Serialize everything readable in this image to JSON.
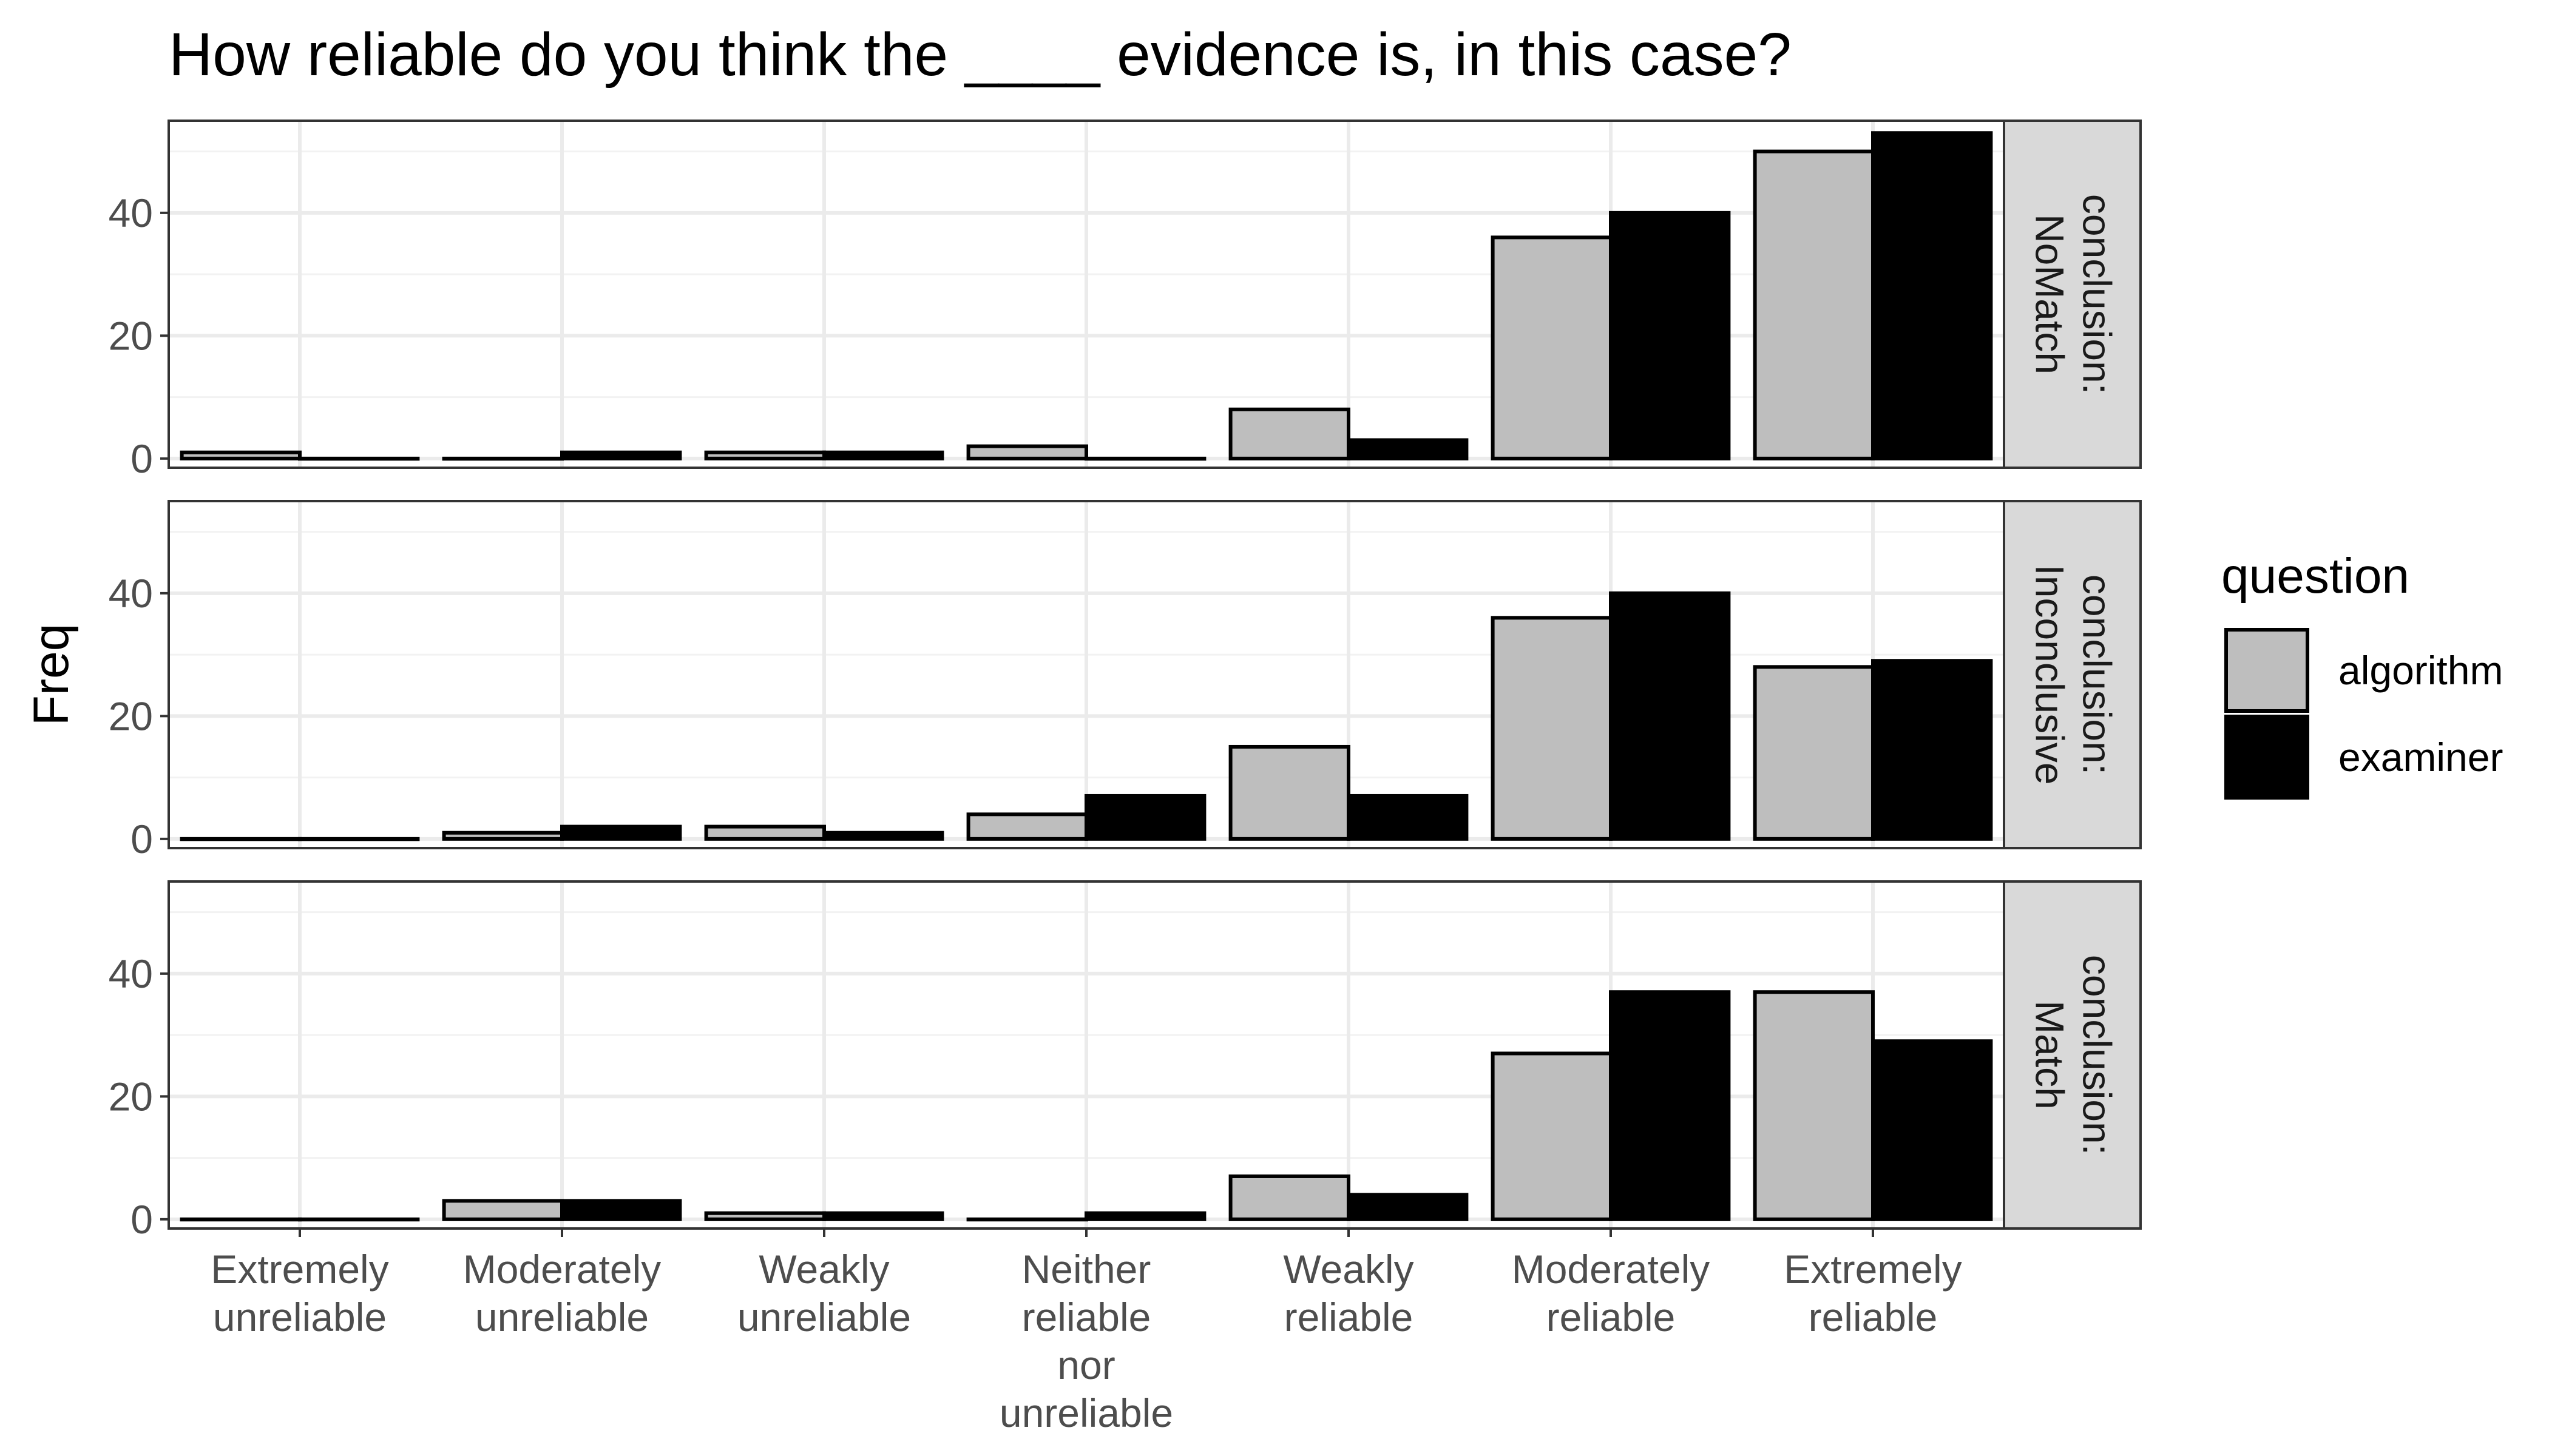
{
  "chart_data": {
    "type": "bar",
    "title": "How reliable do you think the ____ evidence is, in this case?",
    "xlabel": "",
    "ylabel": "Freq",
    "ylim": [
      0,
      55
    ],
    "yticks": [
      0,
      20,
      40
    ],
    "grid": true,
    "legend": {
      "title": "question",
      "position": "right"
    },
    "categories": [
      [
        "Extremely",
        "unreliable"
      ],
      [
        "Moderately",
        "unreliable"
      ],
      [
        "Weakly",
        "unreliable"
      ],
      [
        "Neither",
        "reliable",
        "nor",
        "unreliable"
      ],
      [
        "Weakly",
        "reliable"
      ],
      [
        "Moderately",
        "reliable"
      ],
      [
        "Extremely",
        "reliable"
      ]
    ],
    "series_names": [
      "algorithm",
      "examiner"
    ],
    "series_colors": [
      "#bebebe",
      "#000000"
    ],
    "panels": [
      {
        "strip": [
          "conclusion:",
          "NoMatch"
        ],
        "series": [
          {
            "name": "algorithm",
            "values": [
              1,
              0,
              1,
              2,
              8,
              36,
              50
            ]
          },
          {
            "name": "examiner",
            "values": [
              0,
              1,
              1,
              0,
              3,
              40,
              53
            ]
          }
        ]
      },
      {
        "strip": [
          "conclusion:",
          "Inconclusive"
        ],
        "series": [
          {
            "name": "algorithm",
            "values": [
              0,
              1,
              2,
              4,
              15,
              36,
              28
            ]
          },
          {
            "name": "examiner",
            "values": [
              0,
              2,
              1,
              7,
              7,
              40,
              29
            ]
          }
        ]
      },
      {
        "strip": [
          "conclusion:",
          "Match"
        ],
        "series": [
          {
            "name": "algorithm",
            "values": [
              0,
              3,
              1,
              0,
              7,
              27,
              37
            ]
          },
          {
            "name": "examiner",
            "values": [
              0,
              3,
              1,
              1,
              4,
              37,
              29
            ]
          }
        ]
      }
    ]
  }
}
